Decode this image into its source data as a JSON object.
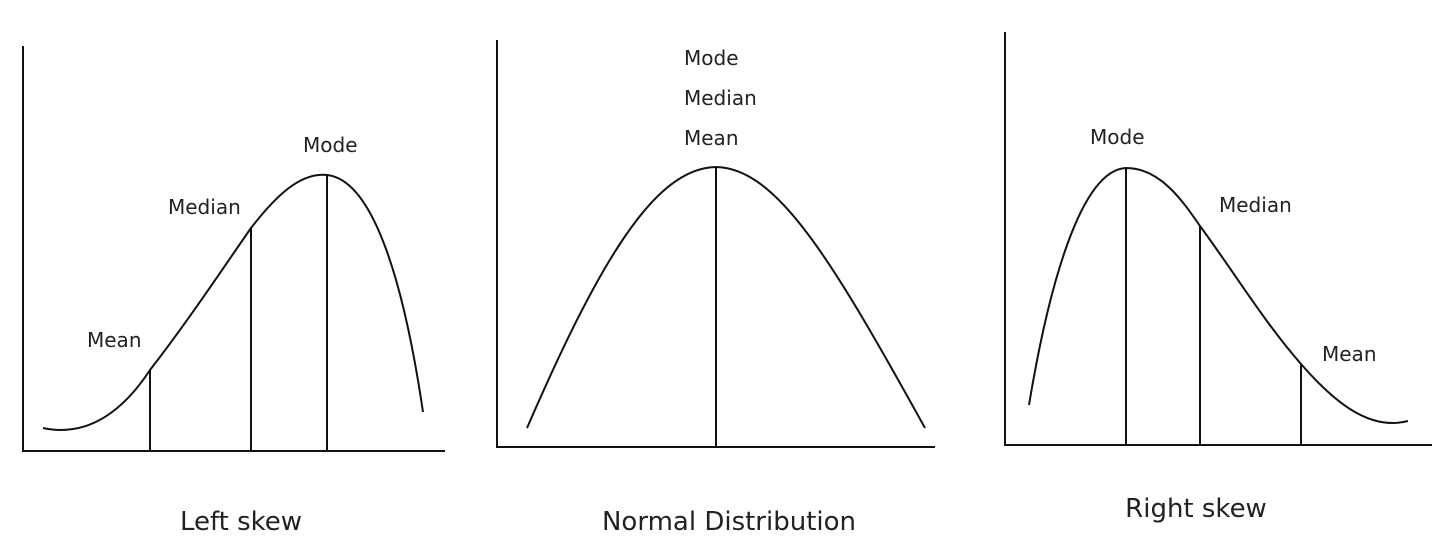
{
  "panels": [
    {
      "id": "left-skew",
      "caption": "Left skew",
      "labels": {
        "mode": "Mode",
        "median": "Median",
        "mean": "Mean"
      }
    },
    {
      "id": "normal",
      "caption": "Normal Distribution",
      "labels": {
        "mode": "Mode",
        "median": "Median",
        "mean": "Mean"
      }
    },
    {
      "id": "right-skew",
      "caption": "Right skew",
      "labels": {
        "mode": "Mode",
        "median": "Median",
        "mean": "Mean"
      }
    }
  ]
}
